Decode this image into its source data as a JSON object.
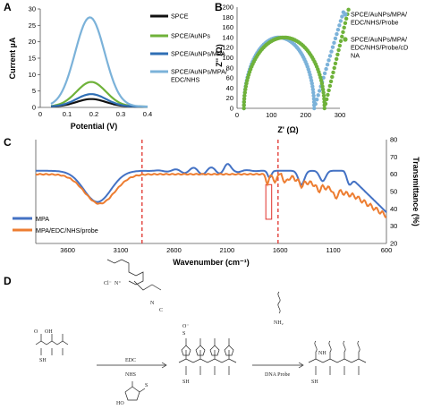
{
  "panels": {
    "A": "A",
    "B": "B",
    "C": "C",
    "D": "D"
  },
  "colors": {
    "black": "#111111",
    "green": "#6fb23a",
    "blue": "#7bb2d9",
    "ftir_blue": "#4472c4",
    "ftir_orange": "#ed7d31",
    "red": "#e0302a"
  },
  "chart_data": [
    {
      "panel": "A",
      "type": "line",
      "xlabel": "Potential (V)",
      "ylabel": "Current µA",
      "xlim": [
        0,
        0.4
      ],
      "ylim": [
        0,
        30
      ],
      "xticks": [
        "0",
        "0.1",
        "0.2",
        "0.3",
        "0.4"
      ],
      "yticks": [
        "0",
        "5",
        "10",
        "15",
        "20",
        "25",
        "30"
      ],
      "legend_position": "right",
      "series": [
        {
          "name": "SPCE",
          "color": "#111111",
          "peak_x": 0.19,
          "peak_y": 2.3
        },
        {
          "name": "SPCE/AuNPs",
          "color": "#6fb23a",
          "peak_x": 0.19,
          "peak_y": 7.5
        },
        {
          "name": "SPCE/AuNPs/MPA",
          "color": "#2f6fb5",
          "peak_x": 0.19,
          "peak_y": 3.8
        },
        {
          "name": "SPCE/AuNPs/MPA/ EDC/NHS",
          "color": "#7bb2d9",
          "peak_x": 0.185,
          "peak_y": 27.2
        }
      ]
    },
    {
      "panel": "B",
      "type": "scatter",
      "xlabel": "Z' (Ω)",
      "ylabel": "Z'' (Ω)",
      "xlim": [
        0,
        300
      ],
      "ylim": [
        0,
        200
      ],
      "xticks": [
        "0",
        "100",
        "200",
        "300"
      ],
      "yticks": [
        "0",
        "20",
        "40",
        "60",
        "80",
        "100",
        "120",
        "140",
        "160",
        "180",
        "200"
      ],
      "legend_position": "right",
      "series": [
        {
          "name": "SPCE/AuNPs/MPA/ EDC/NHS/Probe",
          "color": "#7bb2d9",
          "semicircle_start": 20,
          "semicircle_end": 225,
          "tail_end": [
            310,
            190
          ]
        },
        {
          "name": "SPCE/AuNPs/MPA/ EDC/NHS/Probe/cDNA",
          "color": "#6fb23a",
          "semicircle_start": 20,
          "semicircle_end": 255,
          "tail_end": [
            325,
            195
          ]
        }
      ]
    },
    {
      "panel": "C",
      "type": "line",
      "xlabel": "Wavenumber (cm⁻¹)",
      "ylabel": "Transmittance (%)",
      "xlim": [
        3900,
        600
      ],
      "ylim": [
        20,
        80
      ],
      "xticks": [
        "3600",
        "3100",
        "2600",
        "2100",
        "1600",
        "1100",
        "600"
      ],
      "yticks": [
        "20",
        "30",
        "40",
        "50",
        "60",
        "70",
        "80"
      ],
      "legend_position": "bottom-left",
      "markers": [
        2900,
        1620
      ],
      "highlight_band": [
        1735,
        1680
      ],
      "series": [
        {
          "name": "MPA",
          "color": "#4472c4"
        },
        {
          "name": "MPA/EDC/NHS/probe",
          "color": "#ed7d31"
        }
      ]
    }
  ],
  "scheme": {
    "edc_label": "EDC",
    "nhs_label": "NHS",
    "probe_label": "DNA Probe",
    "sh": "SH",
    "nh2": "NH₂",
    "nh": "NH",
    "cl": "Cl⁻",
    "n_plus": "N⁺",
    "n": "N",
    "c": "C",
    "o": "O",
    "o_minus": "O⁻",
    "s": "S",
    "ho": "HO",
    "oh": "OH",
    "na_plus": "Na⁺"
  }
}
